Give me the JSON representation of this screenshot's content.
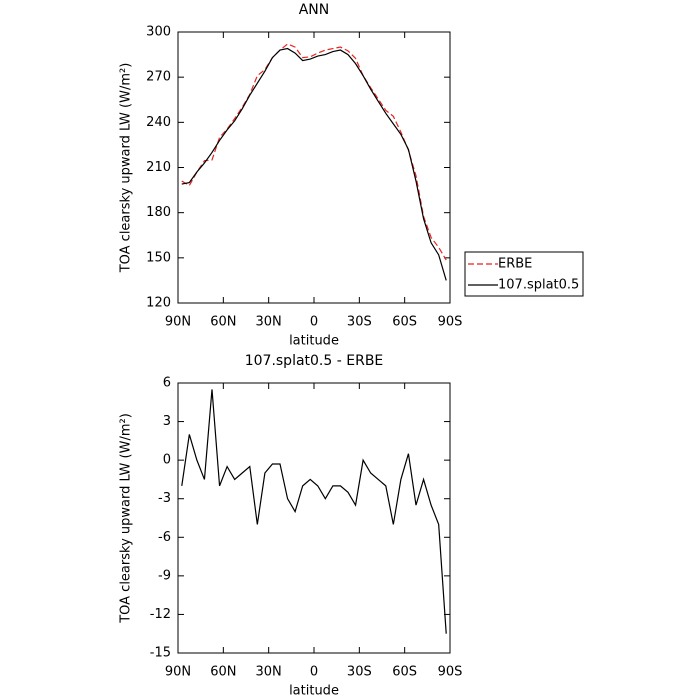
{
  "chart_data": [
    {
      "type": "line",
      "title": "ANN",
      "xlabel": "latitude",
      "ylabel": "TOA clearsky upward LW (W/m²)",
      "x": [
        87.5,
        82.5,
        77.5,
        72.5,
        67.5,
        62.5,
        57.5,
        52.5,
        47.5,
        42.5,
        37.5,
        32.5,
        27.5,
        22.5,
        17.5,
        12.5,
        7.5,
        2.5,
        -2.5,
        -7.5,
        -12.5,
        -17.5,
        -22.5,
        -27.5,
        -32.5,
        -37.5,
        -42.5,
        -47.5,
        -52.5,
        -57.5,
        -62.5,
        -67.5,
        -72.5,
        -77.5,
        -82.5,
        -87.5
      ],
      "series": [
        {
          "name": "ERBE",
          "color": "#e8231f",
          "line_style": "dashed",
          "values": [
            201,
            198,
            207,
            214.5,
            215,
            230,
            235.5,
            242.5,
            250,
            258.5,
            271,
            275,
            283,
            288,
            292,
            290,
            283,
            283.5,
            286,
            288,
            289,
            290,
            287.5,
            282.5,
            271,
            263,
            255.5,
            248,
            244,
            233.5,
            221.5,
            204.5,
            177.5,
            163.5,
            157,
            148.5
          ]
        },
        {
          "name": "107.splat0.5",
          "color": "#000000",
          "line_style": "solid",
          "values": [
            199,
            200,
            207,
            213,
            220,
            228,
            235,
            241,
            249,
            258,
            266,
            274,
            283,
            288,
            289,
            286,
            281,
            282,
            284,
            285,
            287,
            288,
            285,
            279,
            271,
            262,
            254,
            246,
            239,
            232,
            222,
            201,
            176,
            160,
            152,
            135
          ]
        }
      ],
      "xlim": [
        90,
        -90
      ],
      "xticks": [
        {
          "value": 90,
          "label": "90N"
        },
        {
          "value": 60,
          "label": "60N"
        },
        {
          "value": 30,
          "label": "30N"
        },
        0,
        {
          "value": -30,
          "label": "30S"
        },
        {
          "value": -60,
          "label": "60S"
        },
        {
          "value": -90,
          "label": "90S"
        }
      ],
      "ylim": [
        120,
        300
      ],
      "yticks": [
        120,
        150,
        180,
        210,
        240,
        270,
        300
      ],
      "legend": "right"
    },
    {
      "type": "line",
      "title": "107.splat0.5 - ERBE",
      "xlabel": "latitude",
      "ylabel": "TOA clearsky upward LW (W/m²)",
      "x": [
        87.5,
        82.5,
        77.5,
        72.5,
        67.5,
        62.5,
        57.5,
        52.5,
        47.5,
        42.5,
        37.5,
        32.5,
        27.5,
        22.5,
        17.5,
        12.5,
        7.5,
        2.5,
        -2.5,
        -7.5,
        -12.5,
        -17.5,
        -22.5,
        -27.5,
        -32.5,
        -37.5,
        -42.5,
        -47.5,
        -52.5,
        -57.5,
        -62.5,
        -67.5,
        -72.5,
        -77.5,
        -82.5,
        -87.5
      ],
      "series": [
        {
          "name": "107.splat0.5 - ERBE",
          "color": "#000000",
          "line_style": "solid",
          "values": [
            -2,
            2,
            0,
            -1.5,
            5.5,
            -2,
            -0.5,
            -1.5,
            -1,
            -0.5,
            -5,
            -1,
            -0.3,
            -0.3,
            -3,
            -4,
            -2,
            -1.5,
            -2,
            -3,
            -2,
            -2,
            -2.5,
            -3.5,
            0,
            -1,
            -1.5,
            -2,
            -5,
            -1.5,
            0.5,
            -3.5,
            -1.5,
            -3.5,
            -5,
            -13.5
          ]
        }
      ],
      "xlim": [
        90,
        -90
      ],
      "xticks": [
        {
          "value": 90,
          "label": "90N"
        },
        {
          "value": 60,
          "label": "60N"
        },
        {
          "value": 30,
          "label": "30N"
        },
        0,
        {
          "value": -30,
          "label": "30S"
        },
        {
          "value": -60,
          "label": "60S"
        },
        {
          "value": -90,
          "label": "90S"
        }
      ],
      "ylim": [
        -15,
        6
      ],
      "yticks": [
        -15,
        -12,
        -9,
        -6,
        -3,
        0,
        3,
        6
      ]
    }
  ]
}
